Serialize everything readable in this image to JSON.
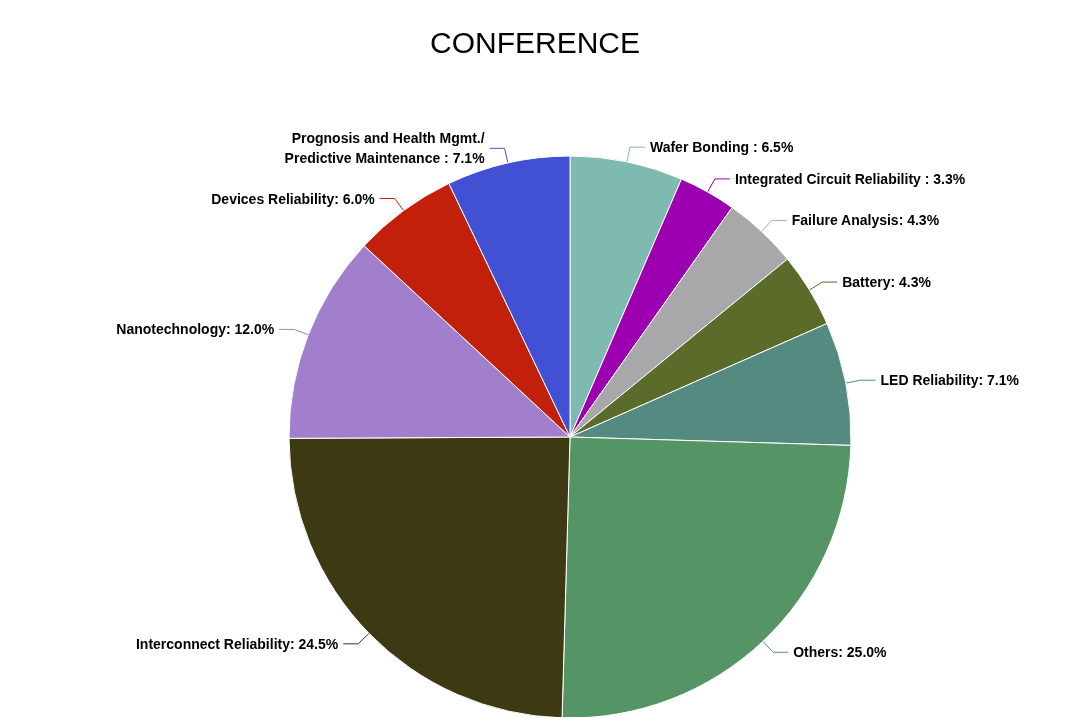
{
  "chart_data": {
    "type": "pie",
    "title": "CONFERENCE",
    "categories": [
      "Wafer Bonding ",
      "Integrated Circuit Reliability ",
      "Failure Analysis",
      "Battery",
      "LED Reliability",
      "Others",
      "Interconnect Reliability",
      "Nanotechnology",
      "Devices Reliability",
      "Prognosis and Health Mgmt./\nPredictive Maintenance "
    ],
    "values": [
      6.5,
      3.3,
      4.3,
      4.3,
      7.1,
      25.0,
      24.5,
      12.0,
      6.0,
      7.1
    ],
    "value_labels": [
      "6.5%",
      "3.3%",
      "4.3%",
      "4.3%",
      "7.1%",
      "25.0%",
      "24.5%",
      "12.0%",
      "6.0%",
      "7.1%"
    ],
    "colors": [
      "#7fbab0",
      "#9c00b0",
      "#a8a8ab",
      "#5a6b2a",
      "#558a80",
      "#559565",
      "#3d3a13",
      "#a27fcc",
      "#c3200c",
      "#4250d4"
    ],
    "legend": false
  }
}
